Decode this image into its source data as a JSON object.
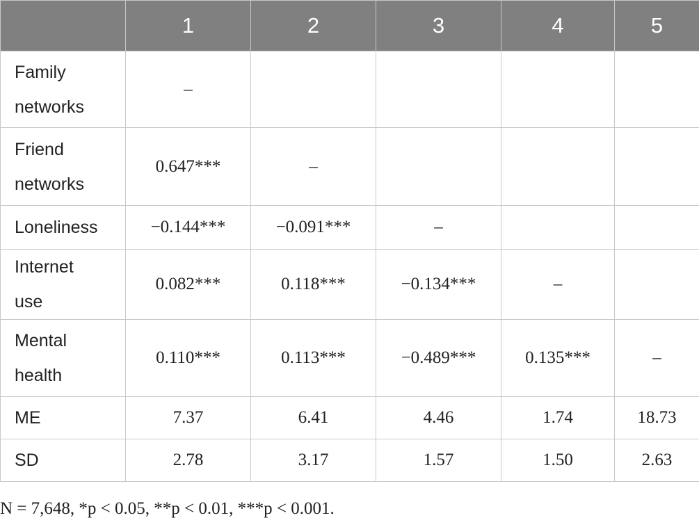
{
  "table": {
    "header": [
      "1",
      "2",
      "3",
      "4",
      "5"
    ],
    "rows": [
      {
        "label": "Family networks",
        "cells": [
          "–"
        ]
      },
      {
        "label": "Friend networks",
        "cells": [
          "0.647***",
          "–"
        ]
      },
      {
        "label": "Loneliness",
        "cells": [
          "−0.144***",
          "−0.091***",
          "–"
        ]
      },
      {
        "label": "Internet use",
        "cells": [
          "0.082***",
          "0.118***",
          "−0.134***",
          "–"
        ]
      },
      {
        "label": "Mental health",
        "cells": [
          "0.110***",
          "0.113***",
          "−0.489***",
          "0.135***",
          "–"
        ]
      },
      {
        "label": "ME",
        "cells": [
          "7.37",
          "6.41",
          "4.46",
          "1.74",
          "18.73"
        ]
      },
      {
        "label": "SD",
        "cells": [
          "2.78",
          "3.17",
          "1.57",
          "1.50",
          "2.63"
        ]
      }
    ],
    "footnote": "N = 7,648, *p < 0.05, **p < 0.01, ***p < 0.001."
  }
}
